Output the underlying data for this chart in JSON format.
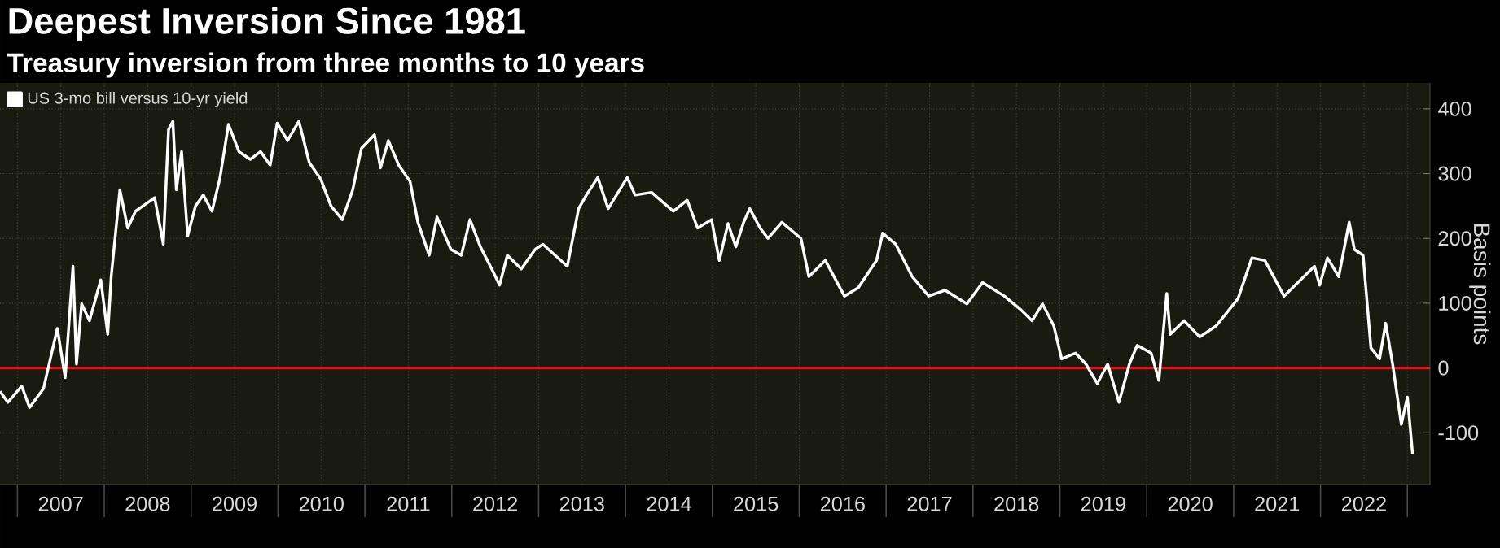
{
  "chart_data": {
    "type": "line",
    "title": "Deepest Inversion Since 1981",
    "subtitle": "Treasury inversion from three months to 10 years",
    "ylabel": "Basis points",
    "xlim": [
      2006.8,
      2023.26
    ],
    "ylim": [
      -180,
      440
    ],
    "xticks": [
      {
        "value": 2007,
        "label": null
      },
      {
        "value": 2007.5,
        "label": "2007"
      },
      {
        "value": 2008,
        "label": null
      },
      {
        "value": 2008.5,
        "label": "2008"
      },
      {
        "value": 2009,
        "label": null
      },
      {
        "value": 2009.5,
        "label": "2009"
      },
      {
        "value": 2010,
        "label": null
      },
      {
        "value": 2010.5,
        "label": "2010"
      },
      {
        "value": 2011,
        "label": null
      },
      {
        "value": 2011.5,
        "label": "2011"
      },
      {
        "value": 2012,
        "label": null
      },
      {
        "value": 2012.5,
        "label": "2012"
      },
      {
        "value": 2013,
        "label": null
      },
      {
        "value": 2013.5,
        "label": "2013"
      },
      {
        "value": 2014,
        "label": null
      },
      {
        "value": 2014.5,
        "label": "2014"
      },
      {
        "value": 2015,
        "label": null
      },
      {
        "value": 2015.5,
        "label": "2015"
      },
      {
        "value": 2016,
        "label": null
      },
      {
        "value": 2016.5,
        "label": "2016"
      },
      {
        "value": 2017,
        "label": null
      },
      {
        "value": 2017.5,
        "label": "2017"
      },
      {
        "value": 2018,
        "label": null
      },
      {
        "value": 2018.5,
        "label": "2018"
      },
      {
        "value": 2019,
        "label": null
      },
      {
        "value": 2019.5,
        "label": "2019"
      },
      {
        "value": 2020,
        "label": null
      },
      {
        "value": 2020.5,
        "label": "2020"
      },
      {
        "value": 2021,
        "label": null
      },
      {
        "value": 2021.5,
        "label": "2021"
      },
      {
        "value": 2022,
        "label": null
      },
      {
        "value": 2022.5,
        "label": "2022"
      },
      {
        "value": 2023,
        "label": null
      }
    ],
    "yticks": [
      -100,
      0,
      100,
      200,
      300,
      400
    ],
    "grid": true,
    "legend": "top left",
    "ref_lines": [
      {
        "axis": "y",
        "value": 0,
        "color": "#e0101e"
      }
    ],
    "series": [
      {
        "name": "US 3-mo bill versus 10-yr yield",
        "color": "#ffffff",
        "x": [
          2006.8,
          2006.89,
          2007.05,
          2007.14,
          2007.3,
          2007.46,
          2007.55,
          2007.64,
          2007.68,
          2007.74,
          2007.83,
          2007.96,
          2008.04,
          2008.08,
          2008.18,
          2008.27,
          2008.36,
          2008.58,
          2008.68,
          2008.74,
          2008.79,
          2008.83,
          2008.89,
          2008.96,
          2009.05,
          2009.14,
          2009.24,
          2009.33,
          2009.43,
          2009.55,
          2009.68,
          2009.8,
          2009.91,
          2009.99,
          2010.11,
          2010.24,
          2010.36,
          2010.49,
          2010.61,
          2010.74,
          2010.86,
          2010.96,
          2011.11,
          2011.18,
          2011.27,
          2011.39,
          2011.52,
          2011.61,
          2011.74,
          2011.83,
          2011.99,
          2012.11,
          2012.21,
          2012.33,
          2012.46,
          2012.55,
          2012.64,
          2012.8,
          2012.96,
          2013.05,
          2013.33,
          2013.46,
          2013.55,
          2013.68,
          2013.8,
          2014.02,
          2014.11,
          2014.3,
          2014.55,
          2014.71,
          2014.83,
          2014.99,
          2015.08,
          2015.18,
          2015.27,
          2015.36,
          2015.43,
          2015.55,
          2015.64,
          2015.8,
          2016.02,
          2016.11,
          2016.3,
          2016.52,
          2016.68,
          2016.89,
          2016.96,
          2017.11,
          2017.3,
          2017.49,
          2017.68,
          2017.93,
          2018.11,
          2018.36,
          2018.55,
          2018.68,
          2018.8,
          2018.93,
          2019.02,
          2019.18,
          2019.3,
          2019.43,
          2019.55,
          2019.68,
          2019.8,
          2019.89,
          2020.05,
          2020.14,
          2020.23,
          2020.27,
          2020.43,
          2020.61,
          2020.8,
          2021.05,
          2021.21,
          2021.36,
          2021.58,
          2021.77,
          2021.93,
          2021.99,
          2022.08,
          2022.21,
          2022.33,
          2022.39,
          2022.49,
          2022.58,
          2022.68,
          2022.75,
          2022.83,
          2022.93,
          2023.0,
          2023.06
        ],
        "values": [
          -36,
          -53,
          -28,
          -61,
          -32,
          61,
          -15,
          157,
          6,
          99,
          73,
          136,
          52,
          141,
          275,
          216,
          242,
          263,
          191,
          368,
          381,
          275,
          334,
          204,
          250,
          267,
          242,
          292,
          376,
          334,
          322,
          334,
          313,
          378,
          351,
          381,
          317,
          292,
          250,
          229,
          275,
          339,
          360,
          309,
          351,
          313,
          288,
          225,
          174,
          233,
          183,
          174,
          229,
          187,
          153,
          128,
          174,
          153,
          183,
          191,
          157,
          246,
          267,
          294,
          246,
          294,
          267,
          271,
          242,
          259,
          216,
          229,
          166,
          223,
          187,
          225,
          246,
          216,
          200,
          225,
          200,
          141,
          166,
          111,
          124,
          166,
          208,
          191,
          141,
          111,
          120,
          99,
          132,
          111,
          90,
          73,
          99,
          65,
          14,
          23,
          6,
          -24,
          6,
          -53,
          6,
          35,
          23,
          -19,
          115,
          52,
          73,
          48,
          65,
          107,
          170,
          166,
          111,
          136,
          157,
          128,
          170,
          141,
          225,
          183,
          174,
          31,
          14,
          69,
          6,
          -87,
          -45,
          -133
        ]
      }
    ]
  }
}
